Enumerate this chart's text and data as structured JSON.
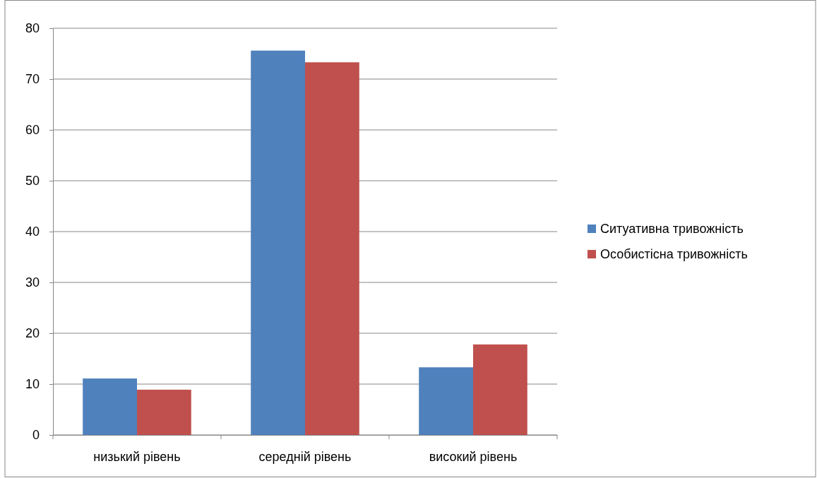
{
  "chart_data": {
    "type": "bar",
    "categories": [
      "низький рівень",
      "середній рівень",
      "високий рівень"
    ],
    "series": [
      {
        "name": "Ситуативна тривожність",
        "color": "#4f81bd",
        "values": [
          11.1,
          75.6,
          13.3
        ]
      },
      {
        "name": "Особистісна тривожність",
        "color": "#c0504d",
        "values": [
          8.9,
          73.3,
          17.8
        ]
      }
    ],
    "ylim": [
      0,
      80
    ],
    "yticks": [
      0,
      10,
      20,
      30,
      40,
      50,
      60,
      70,
      80
    ],
    "grid": "y",
    "legend": "right"
  }
}
